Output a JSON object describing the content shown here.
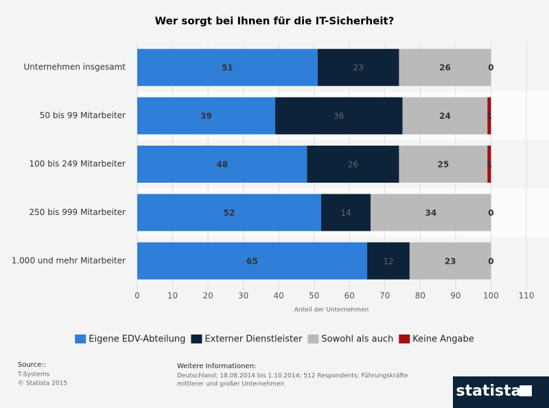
{
  "chart_data": {
    "type": "stacked_bar_horizontal",
    "title": "Wer sorgt bei Ihnen für die IT-Sicherheit?",
    "x_label": "Anteil der Unternehmen",
    "categories": [
      "Unternehmen insgesamt",
      "50 bis 99 Mitarbeiter",
      "100 bis 249 Mitarbeiter",
      "250 bis 999 Mitarbeiter",
      "1.000 und mehr Mitarbeiter"
    ],
    "series": [
      {
        "name": "Eigene EDV-Abteilung",
        "color": "#2f7ed8",
        "values": [
          51,
          39,
          48,
          52,
          65
        ]
      },
      {
        "name": "Externer Dienstleister",
        "color": "#0d233a",
        "values": [
          23,
          36,
          26,
          14,
          12
        ]
      },
      {
        "name": "Sowohl als auch",
        "color": "#bababa",
        "values": [
          26,
          24,
          25,
          34,
          23
        ]
      },
      {
        "name": "Keine Angabe",
        "color": "#a50f0f",
        "values": [
          0,
          1,
          1,
          0,
          0
        ]
      }
    ],
    "xlim": [
      0,
      110
    ],
    "xticks": [
      0,
      10,
      20,
      30,
      40,
      50,
      60,
      70,
      80,
      90,
      100,
      110
    ],
    "grid": true
  },
  "footer": {
    "source_label": "Source::",
    "source": "T-Systems",
    "copyright": "© Statista 2015",
    "info_label": "Weitere Informationen:",
    "info_line1": "Deutschland; 18.08.2014 bis 1.10.2014; 512 Respondents; Führungskräfte",
    "info_line2": "mittlerer und großer Unternehmen",
    "logo": "statista"
  }
}
